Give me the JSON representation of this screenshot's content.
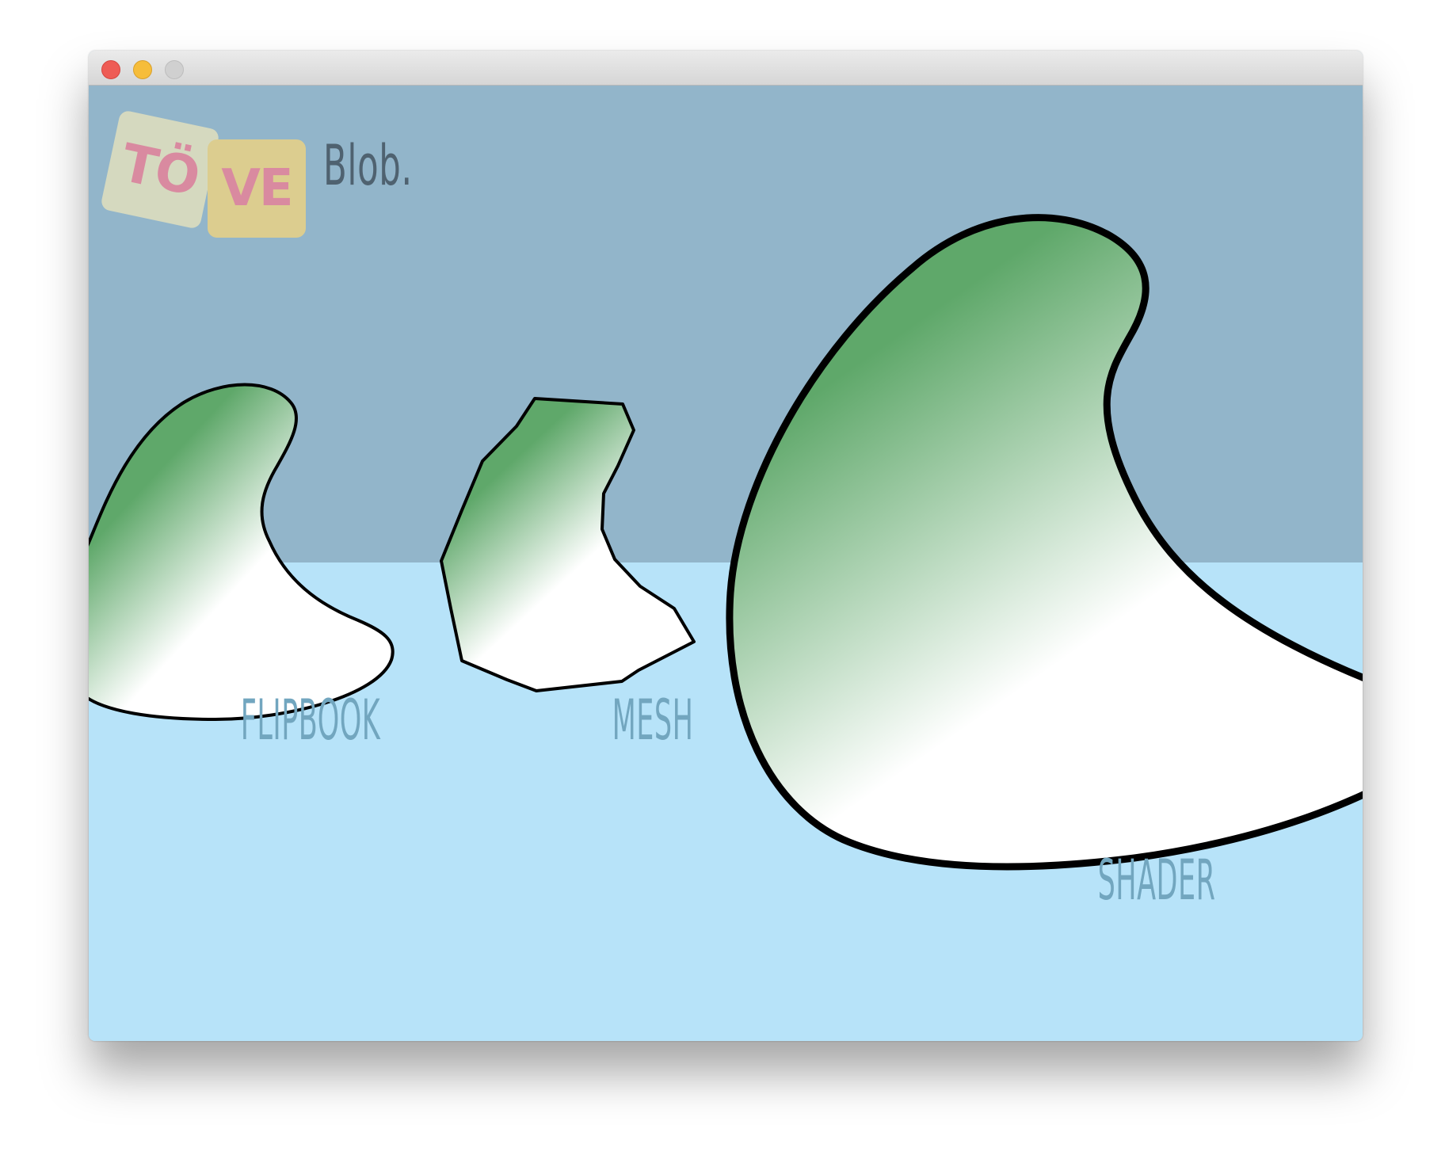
{
  "window": {
    "title": ""
  },
  "logo": {
    "tile1_text": "TÖ",
    "tile2_text": "VE",
    "word": "Blob."
  },
  "labels": {
    "flipbook": "FLIPBOOK",
    "mesh": "MESH",
    "shader": "SHADER"
  },
  "colors": {
    "sky": "#92b5ca",
    "water": "#b7e3f9",
    "blob_gradient_start": "#5fa86a",
    "blob_gradient_end": "#ffffff",
    "outline": "#000000",
    "label_text": "#72a6bf"
  }
}
